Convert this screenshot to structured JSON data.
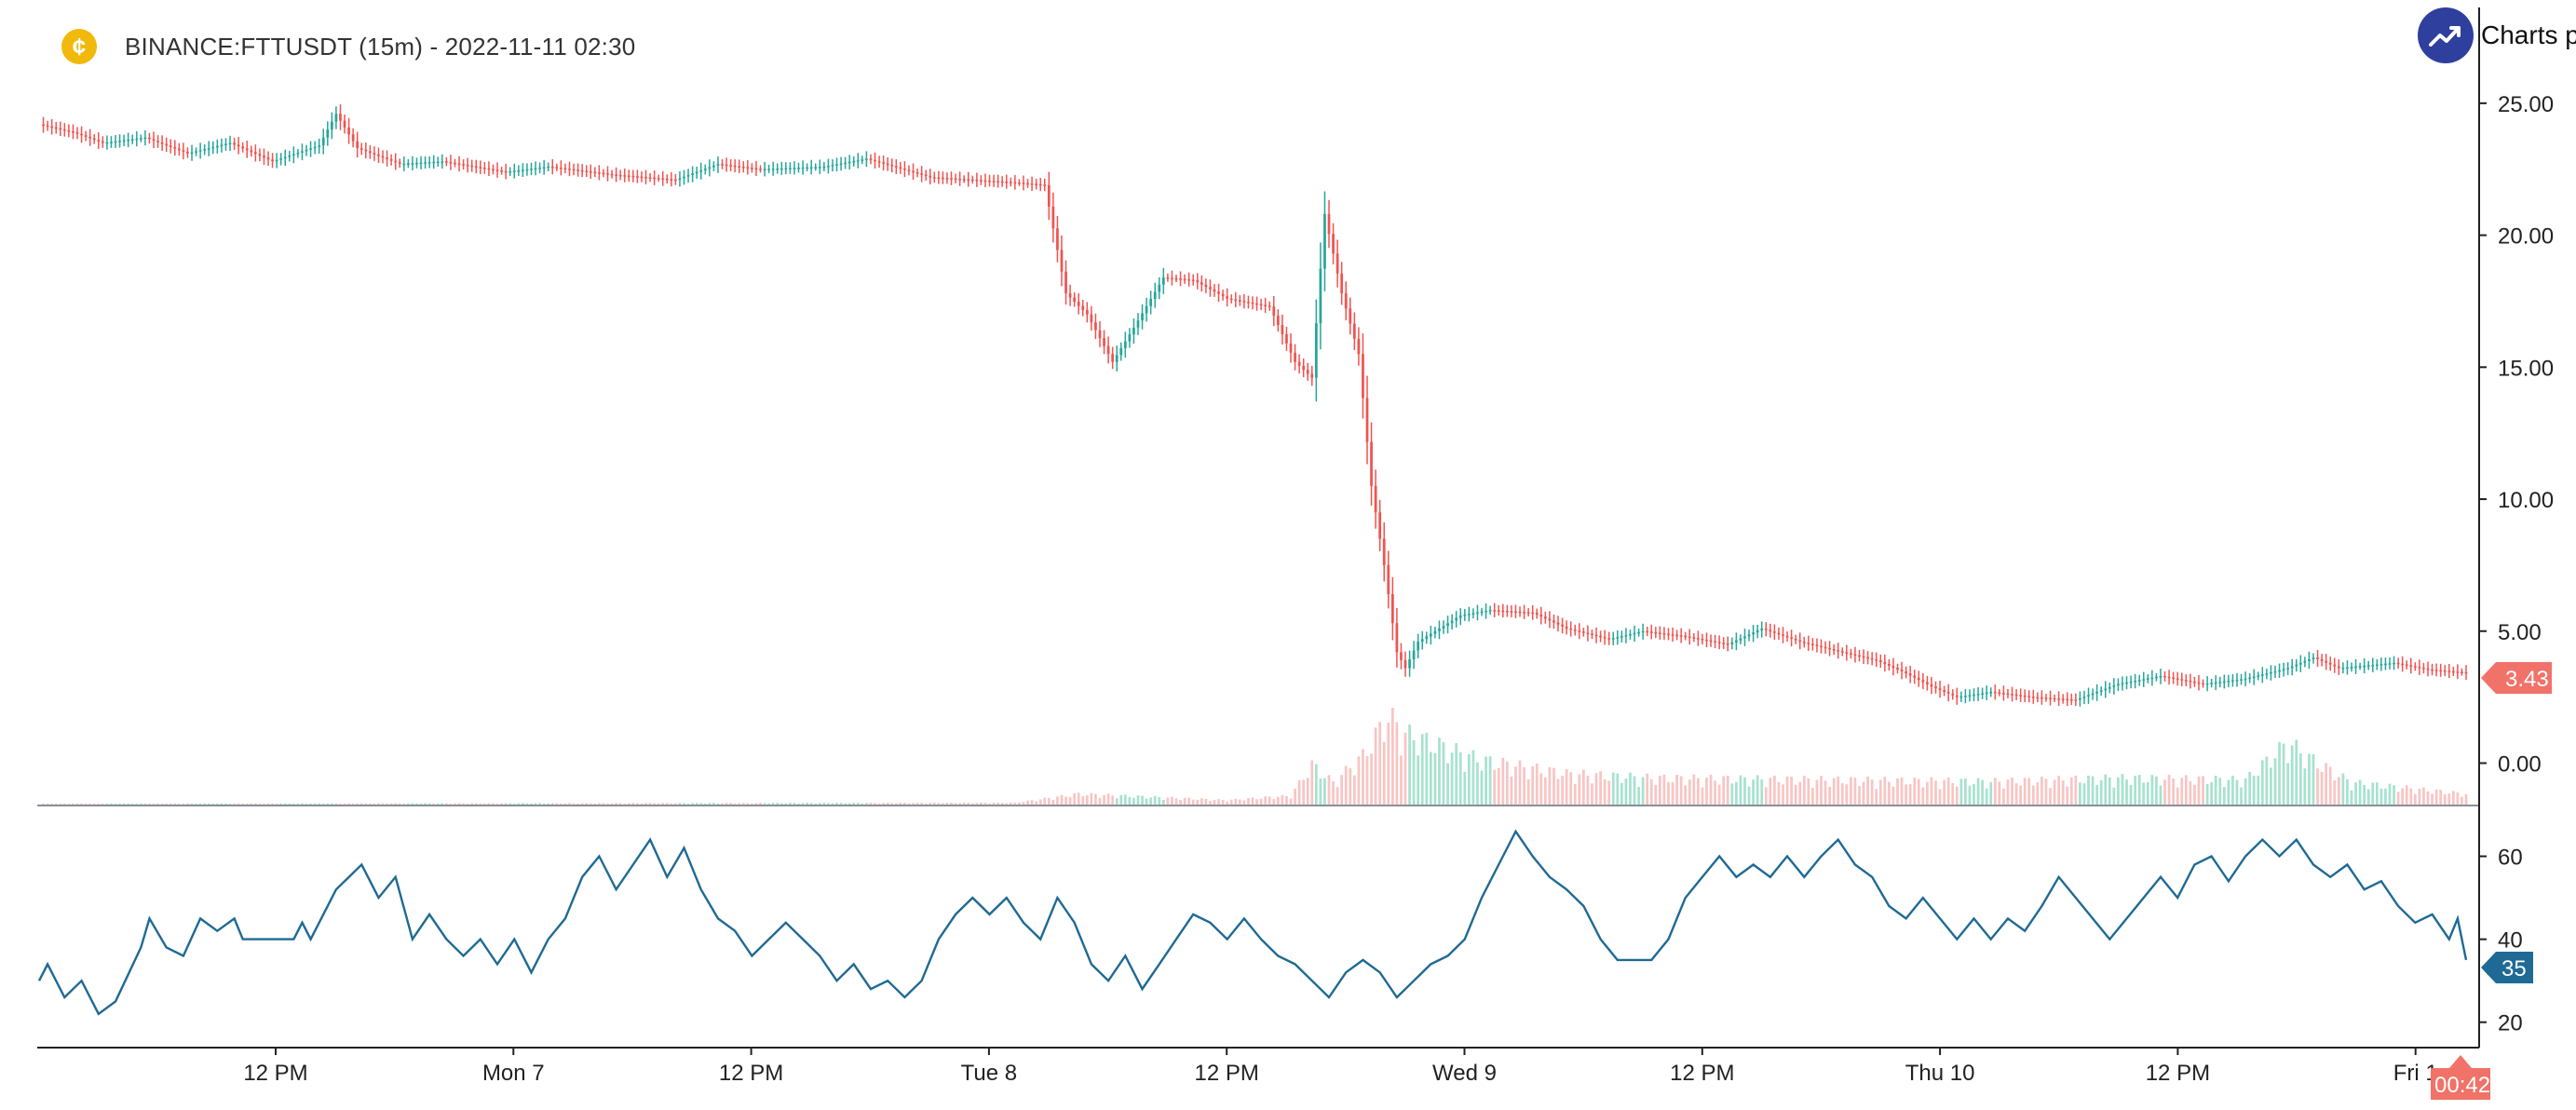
{
  "header": {
    "coin_icon": "coin-icon",
    "title": "BINANCE:FTTUSDT (15m) - 2022-11-11 02:30"
  },
  "brand": {
    "icon": "trending-up-icon",
    "text": "Charts p"
  },
  "colors": {
    "up": "#26a69a",
    "down": "#ef5350",
    "up_volume": "#a7e2cf",
    "down_volume": "#f8c5c3",
    "indicator_line": "#1f6a94",
    "price_badge": "#f07268",
    "indicator_badge": "#1f6a94",
    "time_badge": "#f07268",
    "axis": "#8a8f99"
  },
  "chart_data": {
    "type": "candlestick",
    "title": "BINANCE:FTTUSDT (15m) - 2022-11-11 02:30",
    "price_axis": {
      "ticks": [
        "25.00",
        "20.00",
        "15.00",
        "10.00",
        "5.00",
        "0.00"
      ],
      "ylim": [
        -1.5,
        27.5
      ]
    },
    "indicator_axis": {
      "ticks": [
        "60",
        "40",
        "20"
      ],
      "ylim": [
        15,
        70
      ]
    },
    "x_ticks": [
      "12 PM",
      "Mon 7",
      "12 PM",
      "Tue 8",
      "12 PM",
      "Wed 9",
      "12 PM",
      "Thu 10",
      "12 PM",
      "Fri 1"
    ],
    "last_price_label": "3.43",
    "last_indicator_label": "35",
    "time_label": "00:42",
    "price_keyframes": [
      [
        0,
        24.2
      ],
      [
        8,
        23.9
      ],
      [
        15,
        23.5
      ],
      [
        25,
        23.7
      ],
      [
        35,
        23.1
      ],
      [
        45,
        23.5
      ],
      [
        55,
        22.8
      ],
      [
        66,
        23.4
      ],
      [
        70,
        24.6
      ],
      [
        75,
        23.3
      ],
      [
        85,
        22.7
      ],
      [
        95,
        22.8
      ],
      [
        110,
        22.4
      ],
      [
        120,
        22.6
      ],
      [
        135,
        22.3
      ],
      [
        150,
        22.1
      ],
      [
        160,
        22.7
      ],
      [
        170,
        22.5
      ],
      [
        185,
        22.6
      ],
      [
        195,
        22.9
      ],
      [
        210,
        22.2
      ],
      [
        230,
        22.0
      ],
      [
        237,
        21.9
      ],
      [
        242,
        17.8
      ],
      [
        247,
        17.0
      ],
      [
        253,
        15.2
      ],
      [
        258,
        16.5
      ],
      [
        265,
        18.4
      ],
      [
        272,
        18.3
      ],
      [
        280,
        17.6
      ],
      [
        290,
        17.3
      ],
      [
        296,
        15.2
      ],
      [
        300,
        14.6
      ],
      [
        303,
        20.8
      ],
      [
        307,
        17.8
      ],
      [
        311,
        15.5
      ],
      [
        314,
        10.5
      ],
      [
        317,
        7.5
      ],
      [
        320,
        4.2
      ],
      [
        322,
        3.6
      ],
      [
        325,
        4.6
      ],
      [
        335,
        5.6
      ],
      [
        342,
        5.8
      ],
      [
        352,
        5.7
      ],
      [
        360,
        5.1
      ],
      [
        370,
        4.7
      ],
      [
        378,
        5.0
      ],
      [
        388,
        4.8
      ],
      [
        398,
        4.5
      ],
      [
        406,
        5.1
      ],
      [
        415,
        4.6
      ],
      [
        425,
        4.2
      ],
      [
        433,
        3.9
      ],
      [
        440,
        3.4
      ],
      [
        446,
        2.9
      ],
      [
        452,
        2.5
      ],
      [
        460,
        2.7
      ],
      [
        470,
        2.5
      ],
      [
        480,
        2.4
      ],
      [
        490,
        3.0
      ],
      [
        500,
        3.3
      ],
      [
        510,
        3.0
      ],
      [
        520,
        3.2
      ],
      [
        530,
        3.6
      ],
      [
        536,
        4.0
      ],
      [
        542,
        3.6
      ],
      [
        555,
        3.8
      ],
      [
        563,
        3.55
      ],
      [
        572,
        3.43
      ]
    ],
    "volume_keyframes": [
      [
        0,
        0.01
      ],
      [
        230,
        0.02
      ],
      [
        245,
        0.12
      ],
      [
        260,
        0.09
      ],
      [
        280,
        0.05
      ],
      [
        295,
        0.1
      ],
      [
        300,
        0.45
      ],
      [
        305,
        0.25
      ],
      [
        312,
        0.55
      ],
      [
        318,
        1.0
      ],
      [
        322,
        0.8
      ],
      [
        328,
        0.7
      ],
      [
        340,
        0.5
      ],
      [
        360,
        0.35
      ],
      [
        380,
        0.3
      ],
      [
        420,
        0.28
      ],
      [
        460,
        0.26
      ],
      [
        490,
        0.3
      ],
      [
        520,
        0.28
      ],
      [
        530,
        0.7
      ],
      [
        536,
        0.5
      ],
      [
        545,
        0.25
      ],
      [
        572,
        0.12
      ]
    ],
    "indicator_keyframes": [
      [
        0,
        30
      ],
      [
        2,
        34
      ],
      [
        6,
        26
      ],
      [
        10,
        30
      ],
      [
        14,
        22
      ],
      [
        18,
        25
      ],
      [
        24,
        38
      ],
      [
        26,
        45
      ],
      [
        30,
        38
      ],
      [
        34,
        36
      ],
      [
        38,
        45
      ],
      [
        42,
        42
      ],
      [
        46,
        45
      ],
      [
        48,
        40
      ],
      [
        60,
        40
      ],
      [
        62,
        44
      ],
      [
        64,
        40
      ],
      [
        66,
        44
      ],
      [
        70,
        52
      ],
      [
        76,
        58
      ],
      [
        80,
        50
      ],
      [
        84,
        55
      ],
      [
        88,
        40
      ],
      [
        92,
        46
      ],
      [
        96,
        40
      ],
      [
        100,
        36
      ],
      [
        104,
        40
      ],
      [
        108,
        34
      ],
      [
        112,
        40
      ],
      [
        116,
        32
      ],
      [
        120,
        40
      ],
      [
        124,
        45
      ],
      [
        128,
        55
      ],
      [
        132,
        60
      ],
      [
        136,
        52
      ],
      [
        140,
        58
      ],
      [
        144,
        64
      ],
      [
        148,
        55
      ],
      [
        152,
        62
      ],
      [
        156,
        52
      ],
      [
        160,
        45
      ],
      [
        164,
        42
      ],
      [
        168,
        36
      ],
      [
        172,
        40
      ],
      [
        176,
        44
      ],
      [
        180,
        40
      ],
      [
        184,
        36
      ],
      [
        188,
        30
      ],
      [
        192,
        34
      ],
      [
        196,
        28
      ],
      [
        200,
        30
      ],
      [
        204,
        26
      ],
      [
        208,
        30
      ],
      [
        212,
        40
      ],
      [
        216,
        46
      ],
      [
        220,
        50
      ],
      [
        224,
        46
      ],
      [
        228,
        50
      ],
      [
        232,
        44
      ],
      [
        236,
        40
      ],
      [
        240,
        50
      ],
      [
        244,
        44
      ],
      [
        248,
        34
      ],
      [
        252,
        30
      ],
      [
        256,
        36
      ],
      [
        260,
        28
      ],
      [
        264,
        34
      ],
      [
        268,
        40
      ],
      [
        272,
        46
      ],
      [
        276,
        44
      ],
      [
        280,
        40
      ],
      [
        284,
        45
      ],
      [
        288,
        40
      ],
      [
        292,
        36
      ],
      [
        296,
        34
      ],
      [
        300,
        30
      ],
      [
        304,
        26
      ],
      [
        308,
        32
      ],
      [
        312,
        35
      ],
      [
        316,
        32
      ],
      [
        320,
        26
      ],
      [
        324,
        30
      ],
      [
        328,
        34
      ],
      [
        332,
        36
      ],
      [
        336,
        40
      ],
      [
        340,
        50
      ],
      [
        344,
        58
      ],
      [
        348,
        66
      ],
      [
        352,
        60
      ],
      [
        356,
        55
      ],
      [
        360,
        52
      ],
      [
        364,
        48
      ],
      [
        368,
        40
      ],
      [
        372,
        35
      ],
      [
        380,
        35
      ],
      [
        384,
        40
      ],
      [
        388,
        50
      ],
      [
        392,
        55
      ],
      [
        396,
        60
      ],
      [
        400,
        55
      ],
      [
        404,
        58
      ],
      [
        408,
        55
      ],
      [
        412,
        60
      ],
      [
        416,
        55
      ],
      [
        420,
        60
      ],
      [
        424,
        64
      ],
      [
        428,
        58
      ],
      [
        432,
        55
      ],
      [
        436,
        48
      ],
      [
        440,
        45
      ],
      [
        444,
        50
      ],
      [
        448,
        45
      ],
      [
        452,
        40
      ],
      [
        456,
        45
      ],
      [
        460,
        40
      ],
      [
        464,
        45
      ],
      [
        468,
        42
      ],
      [
        472,
        48
      ],
      [
        476,
        55
      ],
      [
        480,
        50
      ],
      [
        484,
        45
      ],
      [
        488,
        40
      ],
      [
        492,
        45
      ],
      [
        496,
        50
      ],
      [
        500,
        55
      ],
      [
        504,
        50
      ],
      [
        508,
        58
      ],
      [
        512,
        60
      ],
      [
        516,
        54
      ],
      [
        520,
        60
      ],
      [
        524,
        64
      ],
      [
        528,
        60
      ],
      [
        532,
        64
      ],
      [
        536,
        58
      ],
      [
        540,
        55
      ],
      [
        544,
        58
      ],
      [
        548,
        52
      ],
      [
        552,
        54
      ],
      [
        556,
        48
      ],
      [
        560,
        44
      ],
      [
        564,
        46
      ],
      [
        568,
        40
      ],
      [
        570,
        45
      ],
      [
        572,
        35
      ]
    ]
  }
}
